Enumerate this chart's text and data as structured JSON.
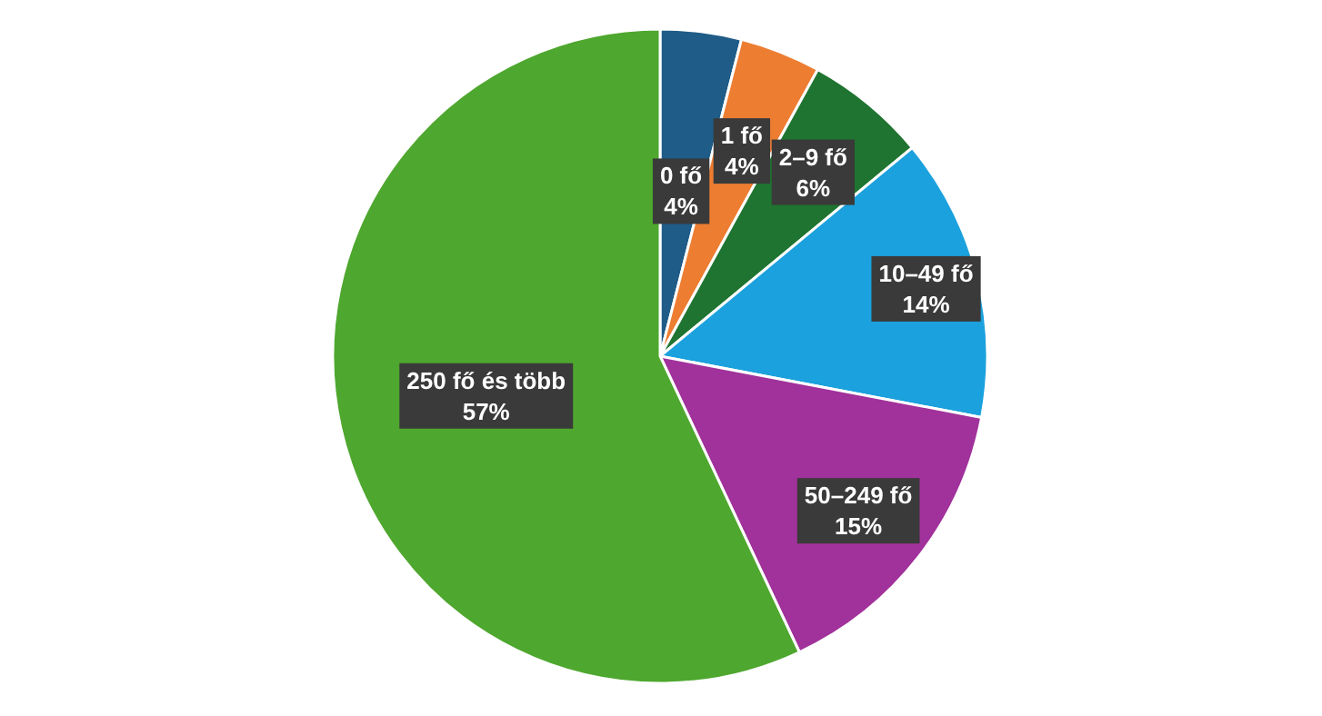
{
  "chart_data": {
    "type": "pie",
    "categories": [
      "0 fő",
      "1 fő",
      "2–9 fő",
      "10–49 fő",
      "50–249 fő",
      "250 fő és több"
    ],
    "values": [
      4,
      4,
      6,
      14,
      15,
      57
    ],
    "value_labels": [
      "4%",
      "4%",
      "6%",
      "14%",
      "15%",
      "57%"
    ],
    "colors": [
      "#1f5c87",
      "#ed7d31",
      "#1e7430",
      "#1ba1dd",
      "#a1319b",
      "#4ea72e"
    ]
  }
}
